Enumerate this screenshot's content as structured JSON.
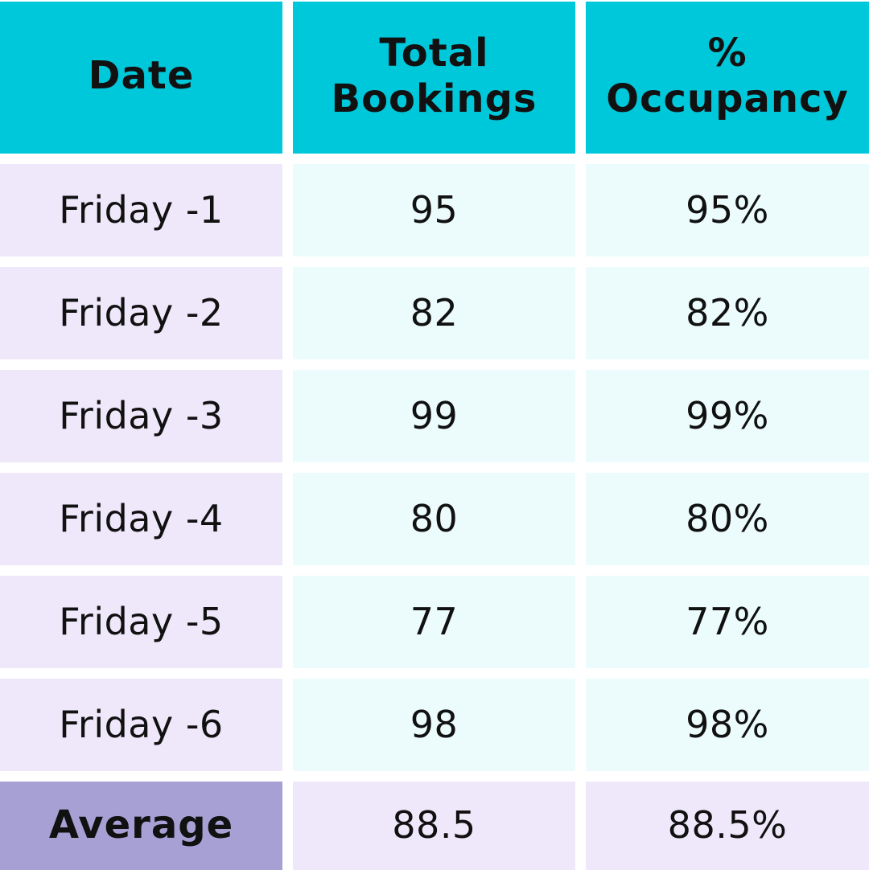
{
  "table": {
    "headers": [
      "Date",
      "Total\nBookings",
      "%\nOccupancy"
    ],
    "rows": [
      {
        "date": "Friday -1",
        "bookings": "95",
        "occupancy": "95%"
      },
      {
        "date": "Friday -2",
        "bookings": "82",
        "occupancy": "82%"
      },
      {
        "date": "Friday -3",
        "bookings": "99",
        "occupancy": "99%"
      },
      {
        "date": "Friday -4",
        "bookings": "80",
        "occupancy": "80%"
      },
      {
        "date": "Friday -5",
        "bookings": "77",
        "occupancy": "77%"
      },
      {
        "date": "Friday -6",
        "bookings": "98",
        "occupancy": "98%"
      }
    ],
    "average": {
      "label": "Average",
      "bookings": "88.5",
      "occupancy": "88.5%"
    }
  },
  "colors": {
    "header_bg": "#00c8db",
    "date_cell_bg": "#efe8fb",
    "data_cell_bg": "#ecfcfd",
    "average_label_bg": "#a6a0d4",
    "average_cell_bg": "#efe8fb"
  }
}
